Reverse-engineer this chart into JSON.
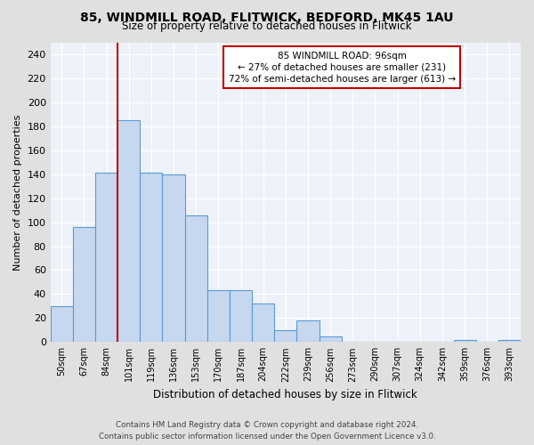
{
  "title_line1": "85, WINDMILL ROAD, FLITWICK, BEDFORD, MK45 1AU",
  "title_line2": "Size of property relative to detached houses in Flitwick",
  "xlabel": "Distribution of detached houses by size in Flitwick",
  "ylabel": "Number of detached properties",
  "bar_labels": [
    "50sqm",
    "67sqm",
    "84sqm",
    "101sqm",
    "119sqm",
    "136sqm",
    "153sqm",
    "170sqm",
    "187sqm",
    "204sqm",
    "222sqm",
    "239sqm",
    "256sqm",
    "273sqm",
    "290sqm",
    "307sqm",
    "324sqm",
    "342sqm",
    "359sqm",
    "376sqm",
    "393sqm"
  ],
  "bar_values": [
    30,
    96,
    141,
    185,
    141,
    140,
    106,
    43,
    43,
    32,
    10,
    18,
    5,
    0,
    0,
    0,
    0,
    0,
    2,
    0,
    2
  ],
  "bar_color": "#c5d8ef",
  "bar_edge_color": "#5b9bd5",
  "vline_color": "#c00000",
  "annotation_line1": "85 WINDMILL ROAD: 96sqm",
  "annotation_line2": "← 27% of detached houses are smaller (231)",
  "annotation_line3": "72% of semi-detached houses are larger (613) →",
  "annotation_box_color": "#ffffff",
  "annotation_box_edge_color": "#c00000",
  "ylim": [
    0,
    250
  ],
  "yticks": [
    0,
    20,
    40,
    60,
    80,
    100,
    120,
    140,
    160,
    180,
    200,
    220,
    240
  ],
  "footer_line1": "Contains HM Land Registry data © Crown copyright and database right 2024.",
  "footer_line2": "Contains public sector information licensed under the Open Government Licence v3.0.",
  "fig_bg_color": "#e0e0e0",
  "plot_bg_color": "#eef2f8",
  "grid_color": "#ffffff"
}
